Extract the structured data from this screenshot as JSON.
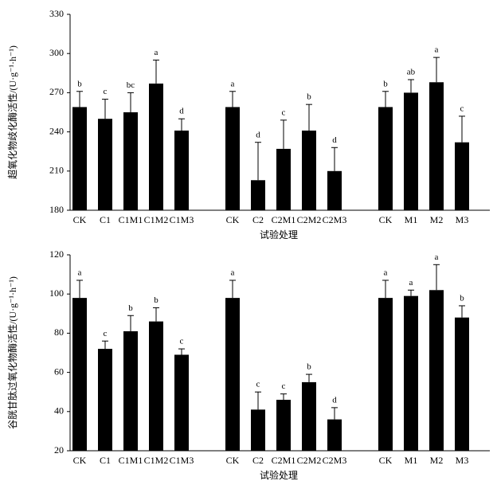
{
  "chart_data": [
    {
      "type": "bar",
      "y_label": "超氧化物歧化酶活性/(U·g⁻¹·h⁻¹)",
      "x_label": "试验处理",
      "categories": [
        "CK",
        "C1",
        "C1M1",
        "C1M2",
        "C1M3",
        null,
        "CK",
        "C2",
        "C2M1",
        "C2M2",
        "C2M3",
        null,
        "CK",
        "M1",
        "M2",
        "M3"
      ],
      "values": [
        259,
        250,
        255,
        277,
        241,
        null,
        259,
        203,
        227,
        241,
        210,
        null,
        259,
        270,
        278,
        232
      ],
      "errors": [
        12,
        15,
        15,
        18,
        9,
        null,
        12,
        29,
        22,
        20,
        18,
        null,
        12,
        10,
        19,
        20
      ],
      "annotations": [
        "b",
        "c",
        "bc",
        "a",
        "d",
        null,
        "a",
        "d",
        "c",
        "b",
        "d",
        null,
        "b",
        "ab",
        "a",
        "c"
      ],
      "color": "#000000",
      "ylim": [
        180,
        330
      ],
      "yticks": [
        180,
        210,
        240,
        270,
        300,
        330
      ]
    },
    {
      "type": "bar",
      "y_label": "谷胱甘肽过氧化物酶活性/(U·g⁻¹·h⁻¹)",
      "x_label": "试验处理",
      "categories": [
        "CK",
        "C1",
        "C1M1",
        "C1M2",
        "C1M3",
        null,
        "CK",
        "C2",
        "C2M1",
        "C2M2",
        "C2M3",
        null,
        "CK",
        "M1",
        "M2",
        "M3"
      ],
      "values": [
        98,
        72,
        81,
        86,
        69,
        null,
        98,
        41,
        46,
        55,
        36,
        null,
        98,
        99,
        102,
        88
      ],
      "errors": [
        9,
        4,
        8,
        7,
        3,
        null,
        9,
        9,
        3,
        4,
        6,
        null,
        9,
        3,
        13,
        6
      ],
      "annotations": [
        "a",
        "c",
        "b",
        "b",
        "c",
        null,
        "a",
        "c",
        "c",
        "b",
        "d",
        null,
        "a",
        "a",
        "a",
        "b"
      ],
      "color": "#000000",
      "ylim": [
        20,
        120
      ],
      "yticks": [
        20,
        40,
        60,
        80,
        100,
        120
      ]
    }
  ]
}
